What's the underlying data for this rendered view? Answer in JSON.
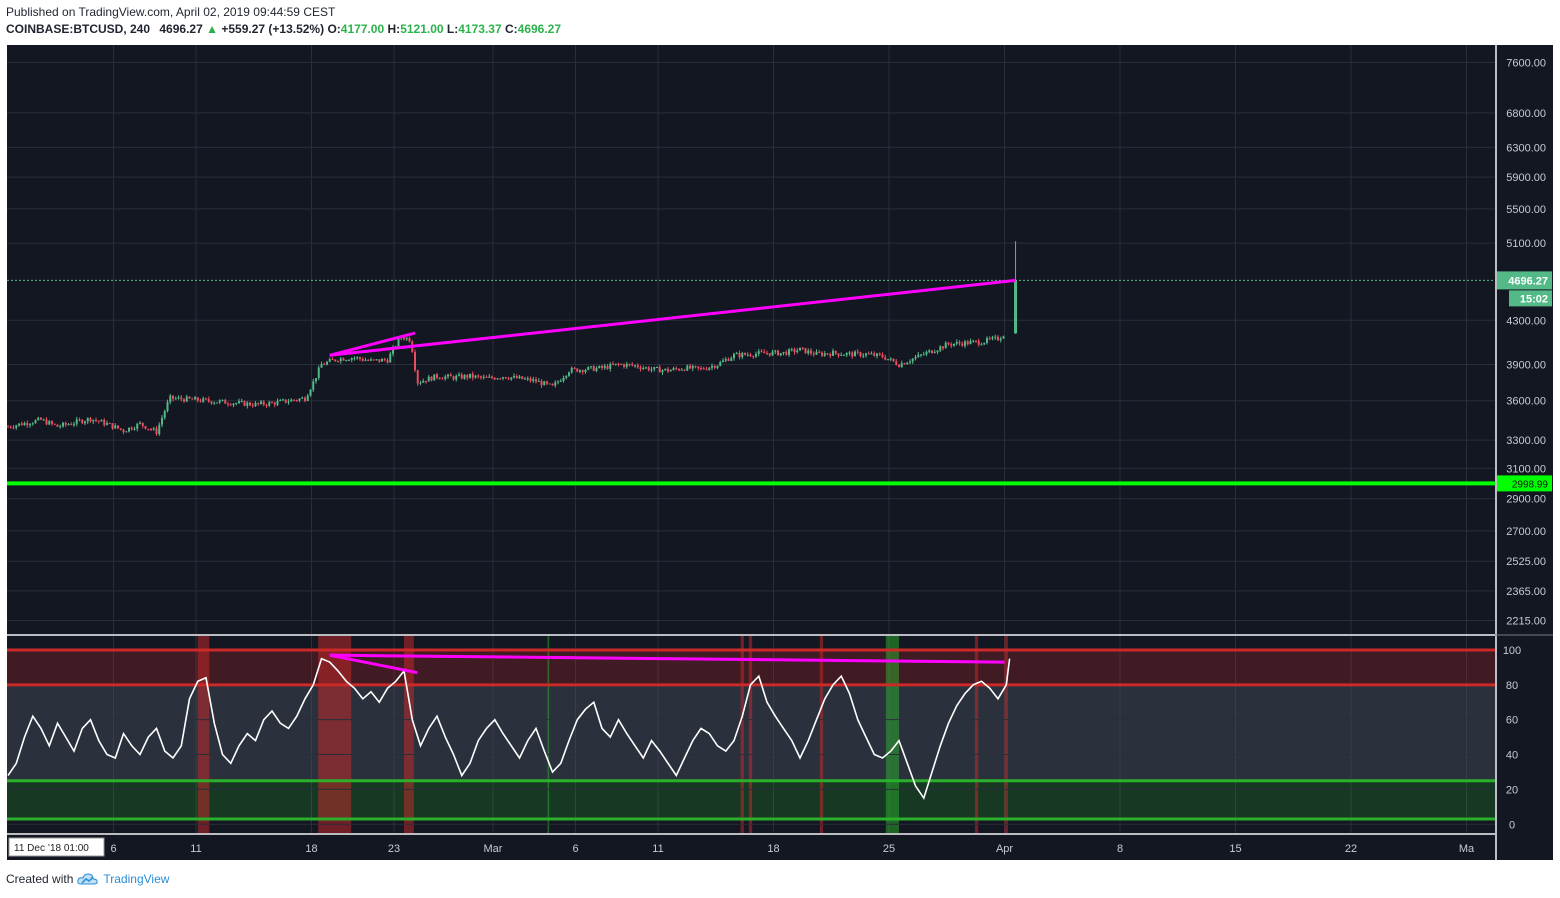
{
  "header": {
    "published": "Published on TradingView.com, April 02, 2019 09:44:59 CEST",
    "symbol": "COINBASE:BTCUSD, 240",
    "last": "4696.27",
    "change": "+559.27 (+13.52%)",
    "o_label": "O:",
    "o": "4177.00",
    "h_label": "H:",
    "h": "5121.00",
    "l_label": "L:",
    "l": "4173.37",
    "c_label": "C:",
    "c": "4696.27"
  },
  "footer": {
    "created": "Created with",
    "brand": "TradingView",
    "icon": "tradingview-cloud-icon"
  },
  "colors": {
    "background": "#131722",
    "grid": "#2a2e39",
    "up": "#53b987",
    "down": "#eb4d5c",
    "trendline": "#ff00ff",
    "support": "#00ff00",
    "rsi_line": "#ffffff",
    "overbought": "#cc2929",
    "oversold": "#2bb02b"
  },
  "chart_data": [
    {
      "type": "candlestick",
      "symbol": "COINBASE:BTCUSD",
      "timeframe": "240",
      "yscale": "log",
      "ylim": [
        2150,
        7900
      ],
      "y_ticks": [
        "7600.00",
        "6800.00",
        "6300.00",
        "5900.00",
        "5500.00",
        "5100.00",
        "4300.00",
        "3900.00",
        "3600.00",
        "3300.00",
        "3100.00",
        "2900.00",
        "2700.00",
        "2525.00",
        "2365.00",
        "2215.00"
      ],
      "x_ticks": [
        "6",
        "11",
        "18",
        "23",
        "Mar",
        "6",
        "11",
        "18",
        "25",
        "Apr",
        "8",
        "15",
        "22",
        "Ma"
      ],
      "current_price": 4696.27,
      "price_label": "4696.27",
      "countdown_label": "15:02",
      "support_level": 2998.99,
      "support_label": "2998.99",
      "trendlines": [
        {
          "from": {
            "day": 19.5,
            "price": 3980
          },
          "to": {
            "day": 24.3,
            "price": 4180
          }
        },
        {
          "from": {
            "day": 19.5,
            "price": 3980
          },
          "to": {
            "day": 60.7,
            "price": 4696
          }
        }
      ],
      "series": [
        {
          "day": 0,
          "price": 3400
        },
        {
          "day": 2,
          "price": 3450
        },
        {
          "day": 3,
          "price": 3400
        },
        {
          "day": 5,
          "price": 3460
        },
        {
          "day": 6,
          "price": 3420
        },
        {
          "day": 7,
          "price": 3370
        },
        {
          "day": 8,
          "price": 3420
        },
        {
          "day": 9,
          "price": 3360
        },
        {
          "day": 9.8,
          "price": 3620
        },
        {
          "day": 11,
          "price": 3610
        },
        {
          "day": 12,
          "price": 3600
        },
        {
          "day": 13,
          "price": 3590
        },
        {
          "day": 14,
          "price": 3580
        },
        {
          "day": 15,
          "price": 3570
        },
        {
          "day": 16,
          "price": 3580
        },
        {
          "day": 17,
          "price": 3600
        },
        {
          "day": 18,
          "price": 3620
        },
        {
          "day": 18.5,
          "price": 3750
        },
        {
          "day": 19,
          "price": 3900
        },
        {
          "day": 20,
          "price": 3950
        },
        {
          "day": 21,
          "price": 3960
        },
        {
          "day": 22,
          "price": 3930
        },
        {
          "day": 23,
          "price": 3940
        },
        {
          "day": 23.8,
          "price": 4150
        },
        {
          "day": 24.4,
          "price": 4120
        },
        {
          "day": 24.8,
          "price": 3750
        },
        {
          "day": 26,
          "price": 3800
        },
        {
          "day": 27,
          "price": 3790
        },
        {
          "day": 28,
          "price": 3800
        },
        {
          "day": 29,
          "price": 3780
        },
        {
          "day": 30,
          "price": 3800
        },
        {
          "day": 31,
          "price": 3780
        },
        {
          "day": 32,
          "price": 3760
        },
        {
          "day": 33,
          "price": 3710
        },
        {
          "day": 34,
          "price": 3850
        },
        {
          "day": 35,
          "price": 3860
        },
        {
          "day": 36,
          "price": 3870
        },
        {
          "day": 37,
          "price": 3900
        },
        {
          "day": 38,
          "price": 3890
        },
        {
          "day": 39,
          "price": 3860
        },
        {
          "day": 40,
          "price": 3850
        },
        {
          "day": 41,
          "price": 3870
        },
        {
          "day": 42,
          "price": 3860
        },
        {
          "day": 43,
          "price": 3900
        },
        {
          "day": 44,
          "price": 3980
        },
        {
          "day": 45,
          "price": 3990
        },
        {
          "day": 46,
          "price": 4000
        },
        {
          "day": 47,
          "price": 4000
        },
        {
          "day": 48,
          "price": 4030
        },
        {
          "day": 49,
          "price": 3990
        },
        {
          "day": 50,
          "price": 4000
        },
        {
          "day": 51,
          "price": 3990
        },
        {
          "day": 52,
          "price": 3990
        },
        {
          "day": 53,
          "price": 3970
        },
        {
          "day": 54,
          "price": 3900
        },
        {
          "day": 55,
          "price": 3960
        },
        {
          "day": 56,
          "price": 4020
        },
        {
          "day": 57,
          "price": 4080
        },
        {
          "day": 58,
          "price": 4090
        },
        {
          "day": 59,
          "price": 4100
        },
        {
          "day": 60,
          "price": 4130
        },
        {
          "day": 60.4,
          "price": 4177
        },
        {
          "day": 60.7,
          "price": 4696.27
        }
      ],
      "last_candle": {
        "open": 4177.0,
        "high": 5121.0,
        "low": 4173.37,
        "close": 4696.27
      }
    },
    {
      "type": "line",
      "name": "RSI",
      "ylim": [
        -5,
        108
      ],
      "y_ticks": [
        "100",
        "80",
        "60",
        "40",
        "20",
        "0"
      ],
      "levels": [
        100,
        80,
        25,
        3
      ],
      "overbought_zones": [
        {
          "from": 11.5,
          "to": 12.2
        },
        {
          "from": 18.8,
          "to": 20.8
        },
        {
          "from": 24.0,
          "to": 24.6
        },
        {
          "from": 44.4,
          "to": 44.6
        },
        {
          "from": 44.9,
          "to": 45.1
        },
        {
          "from": 49.2,
          "to": 49.4
        },
        {
          "from": 58.6,
          "to": 58.8
        },
        {
          "from": 60.4,
          "to": 60.6
        }
      ],
      "oversold_zones": [
        {
          "from": 32.7,
          "to": 32.8
        },
        {
          "from": 53.2,
          "to": 54.0
        }
      ],
      "trendlines": [
        {
          "from": {
            "day": 19.5,
            "value": 97
          },
          "to": {
            "day": 24.8,
            "value": 87
          }
        },
        {
          "from": {
            "day": 19.5,
            "value": 97
          },
          "to": {
            "day": 60.4,
            "value": 93
          }
        }
      ],
      "x": [
        0,
        0.5,
        1,
        1.5,
        2,
        2.5,
        3,
        3.5,
        4,
        4.5,
        5,
        5.5,
        6,
        6.5,
        7,
        7.5,
        8,
        8.5,
        9,
        9.5,
        10,
        10.5,
        11,
        11.5,
        12,
        12.5,
        13,
        13.5,
        14,
        14.5,
        15,
        15.5,
        16,
        16.5,
        17,
        17.5,
        18,
        18.5,
        19,
        19.5,
        20,
        20.5,
        21,
        21.5,
        22,
        22.5,
        23,
        23.5,
        24,
        24.5,
        25,
        25.5,
        26,
        26.5,
        27,
        27.5,
        28,
        28.5,
        29,
        29.5,
        30,
        30.5,
        31,
        31.5,
        32,
        32.5,
        33,
        33.5,
        34,
        34.5,
        35,
        35.5,
        36,
        36.5,
        37,
        37.5,
        38,
        38.5,
        39,
        39.5,
        40,
        40.5,
        41,
        41.5,
        42,
        42.5,
        43,
        43.5,
        44,
        44.5,
        45,
        45.5,
        46,
        46.5,
        47,
        47.5,
        48,
        48.5,
        49,
        49.5,
        50,
        50.5,
        51,
        51.5,
        52,
        52.5,
        53,
        53.5,
        54,
        54.5,
        55,
        55.5,
        56,
        56.5,
        57,
        57.5,
        58,
        58.5,
        59,
        59.5,
        60,
        60.5,
        60.7
      ],
      "values": [
        28,
        35,
        50,
        62,
        55,
        45,
        58,
        50,
        42,
        55,
        60,
        48,
        40,
        38,
        52,
        45,
        40,
        50,
        55,
        42,
        38,
        45,
        72,
        82,
        84,
        58,
        40,
        35,
        45,
        52,
        48,
        60,
        65,
        58,
        55,
        62,
        72,
        80,
        95,
        93,
        88,
        82,
        78,
        72,
        76,
        70,
        78,
        82,
        88,
        60,
        45,
        55,
        62,
        50,
        40,
        28,
        35,
        48,
        55,
        60,
        52,
        45,
        38,
        48,
        55,
        42,
        30,
        35,
        48,
        60,
        66,
        70,
        55,
        50,
        60,
        52,
        45,
        38,
        48,
        42,
        35,
        28,
        38,
        48,
        55,
        52,
        45,
        42,
        48,
        62,
        80,
        85,
        70,
        62,
        55,
        48,
        38,
        48,
        60,
        72,
        80,
        85,
        75,
        60,
        50,
        40,
        38,
        42,
        48,
        35,
        22,
        15,
        30,
        45,
        58,
        68,
        75,
        80,
        82,
        78,
        72,
        80,
        95
      ]
    }
  ]
}
